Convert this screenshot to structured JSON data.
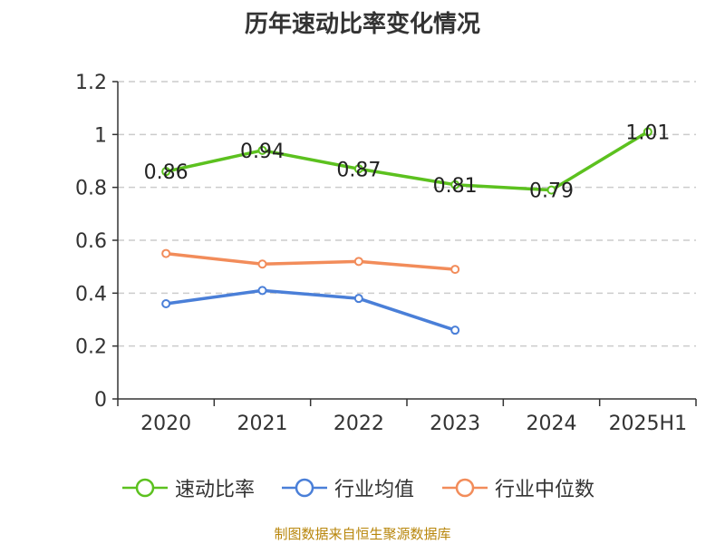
{
  "title": "历年速动比率变化情况",
  "source_text": "制图数据来自恒生聚源数据库",
  "colors": {
    "axis": "#333333",
    "grid": "#cccccc",
    "text": "#333333",
    "source": "#b8860b"
  },
  "chart_data": {
    "type": "line",
    "title": "历年速动比率变化情况",
    "xlabel": "",
    "ylabel": "",
    "categories": [
      "2020",
      "2021",
      "2022",
      "2023",
      "2024",
      "2025H1"
    ],
    "ylim": [
      0,
      1.2
    ],
    "yticks": [
      0,
      0.2,
      0.4,
      0.6,
      0.8,
      1,
      1.2
    ],
    "ytick_labels": [
      "0",
      "0.2",
      "0.4",
      "0.6",
      "0.8",
      "1",
      "1.2"
    ],
    "grid": true,
    "legend_position": "bottom",
    "series": [
      {
        "name": "速动比率",
        "color": "#5cc11f",
        "values": [
          0.86,
          0.94,
          0.87,
          0.81,
          0.79,
          1.01
        ],
        "labels": [
          "0.86",
          "0.94",
          "0.87",
          "0.81",
          "0.79",
          "1.01"
        ]
      },
      {
        "name": "行业均值",
        "color": "#4a7fd8",
        "values": [
          0.36,
          0.41,
          0.38,
          0.26,
          null,
          null
        ]
      },
      {
        "name": "行业中位数",
        "color": "#f28c5a",
        "values": [
          0.55,
          0.51,
          0.52,
          0.49,
          null,
          null
        ]
      }
    ]
  }
}
